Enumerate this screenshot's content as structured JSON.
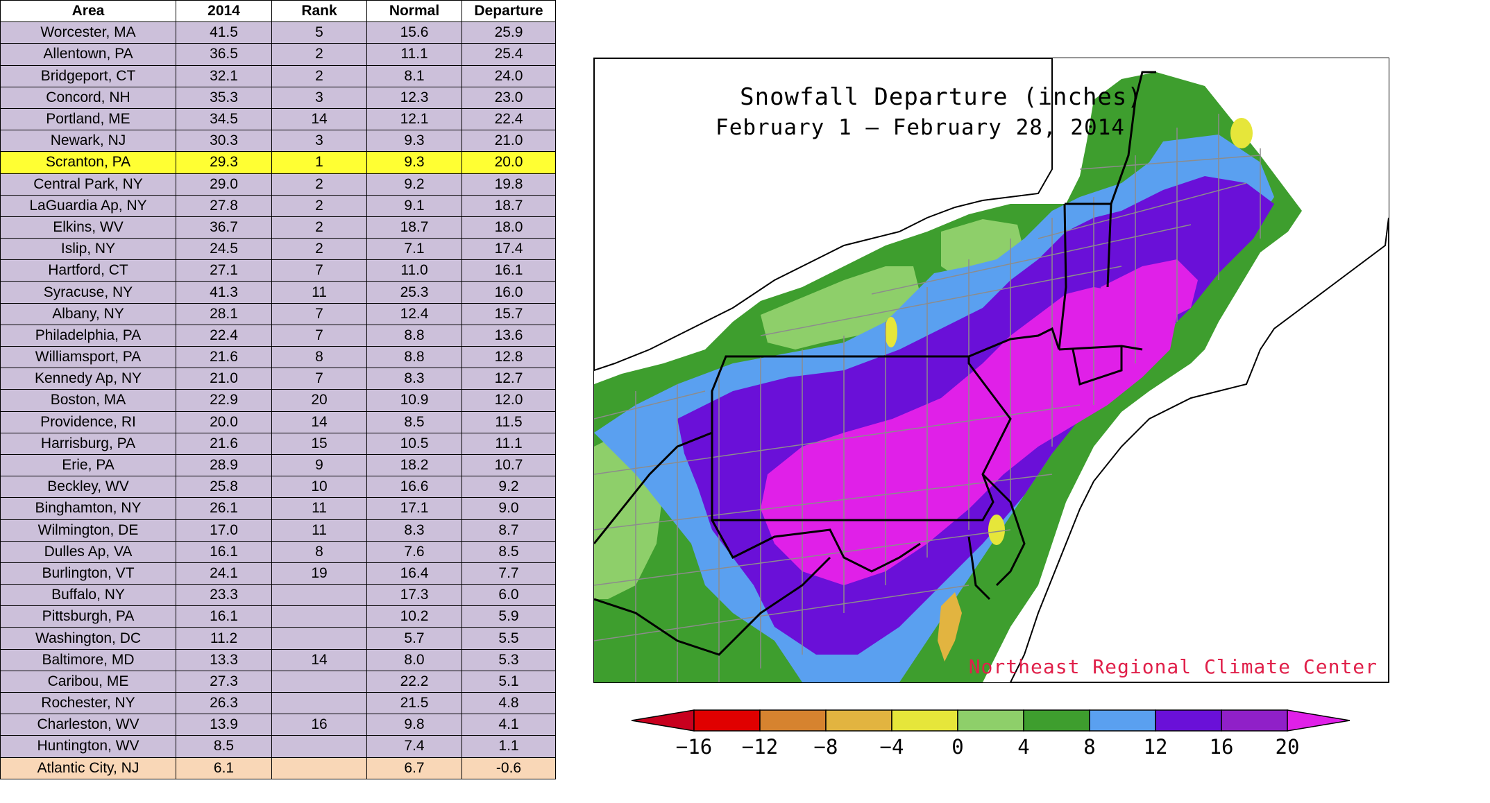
{
  "table": {
    "headers": [
      "Area",
      "2014",
      "Rank",
      "Normal",
      "Departure"
    ],
    "rows": [
      {
        "area": "Worcester, MA",
        "y2014": "41.5",
        "rank": "5",
        "normal": "15.6",
        "departure": "25.9"
      },
      {
        "area": "Allentown, PA",
        "y2014": "36.5",
        "rank": "2",
        "normal": "11.1",
        "departure": "25.4"
      },
      {
        "area": "Bridgeport, CT",
        "y2014": "32.1",
        "rank": "2",
        "normal": "8.1",
        "departure": "24.0"
      },
      {
        "area": "Concord, NH",
        "y2014": "35.3",
        "rank": "3",
        "normal": "12.3",
        "departure": "23.0"
      },
      {
        "area": "Portland, ME",
        "y2014": "34.5",
        "rank": "14",
        "normal": "12.1",
        "departure": "22.4"
      },
      {
        "area": "Newark, NJ",
        "y2014": "30.3",
        "rank": "3",
        "normal": "9.3",
        "departure": "21.0"
      },
      {
        "area": "Scranton, PA",
        "y2014": "29.3",
        "rank": "1",
        "normal": "9.3",
        "departure": "20.0",
        "highlight": true
      },
      {
        "area": "Central Park, NY",
        "y2014": "29.0",
        "rank": "2",
        "normal": "9.2",
        "departure": "19.8"
      },
      {
        "area": "LaGuardia Ap, NY",
        "y2014": "27.8",
        "rank": "2",
        "normal": "9.1",
        "departure": "18.7"
      },
      {
        "area": "Elkins, WV",
        "y2014": "36.7",
        "rank": "2",
        "normal": "18.7",
        "departure": "18.0"
      },
      {
        "area": "Islip, NY",
        "y2014": "24.5",
        "rank": "2",
        "normal": "7.1",
        "departure": "17.4"
      },
      {
        "area": "Hartford, CT",
        "y2014": "27.1",
        "rank": "7",
        "normal": "11.0",
        "departure": "16.1"
      },
      {
        "area": "Syracuse, NY",
        "y2014": "41.3",
        "rank": "11",
        "normal": "25.3",
        "departure": "16.0"
      },
      {
        "area": "Albany, NY",
        "y2014": "28.1",
        "rank": "7",
        "normal": "12.4",
        "departure": "15.7"
      },
      {
        "area": "Philadelphia, PA",
        "y2014": "22.4",
        "rank": "7",
        "normal": "8.8",
        "departure": "13.6"
      },
      {
        "area": "Williamsport, PA",
        "y2014": "21.6",
        "rank": "8",
        "normal": "8.8",
        "departure": "12.8"
      },
      {
        "area": "Kennedy Ap, NY",
        "y2014": "21.0",
        "rank": "7",
        "normal": "8.3",
        "departure": "12.7"
      },
      {
        "area": "Boston, MA",
        "y2014": "22.9",
        "rank": "20",
        "normal": "10.9",
        "departure": "12.0"
      },
      {
        "area": "Providence, RI",
        "y2014": "20.0",
        "rank": "14",
        "normal": "8.5",
        "departure": "11.5"
      },
      {
        "area": "Harrisburg, PA",
        "y2014": "21.6",
        "rank": "15",
        "normal": "10.5",
        "departure": "11.1"
      },
      {
        "area": "Erie, PA",
        "y2014": "28.9",
        "rank": "9",
        "normal": "18.2",
        "departure": "10.7"
      },
      {
        "area": "Beckley, WV",
        "y2014": "25.8",
        "rank": "10",
        "normal": "16.6",
        "departure": "9.2"
      },
      {
        "area": "Binghamton, NY",
        "y2014": "26.1",
        "rank": "11",
        "normal": "17.1",
        "departure": "9.0"
      },
      {
        "area": "Wilmington, DE",
        "y2014": "17.0",
        "rank": "11",
        "normal": "8.3",
        "departure": "8.7"
      },
      {
        "area": "Dulles Ap, VA",
        "y2014": "16.1",
        "rank": "8",
        "normal": "7.6",
        "departure": "8.5"
      },
      {
        "area": "Burlington, VT",
        "y2014": "24.1",
        "rank": "19",
        "normal": "16.4",
        "departure": "7.7"
      },
      {
        "area": "Buffalo, NY",
        "y2014": "23.3",
        "rank": "",
        "normal": "17.3",
        "departure": "6.0"
      },
      {
        "area": "Pittsburgh, PA",
        "y2014": "16.1",
        "rank": "",
        "normal": "10.2",
        "departure": "5.9"
      },
      {
        "area": "Washington, DC",
        "y2014": "11.2",
        "rank": "",
        "normal": "5.7",
        "departure": "5.5"
      },
      {
        "area": "Baltimore, MD",
        "y2014": "13.3",
        "rank": "14",
        "normal": "8.0",
        "departure": "5.3"
      },
      {
        "area": "Caribou, ME",
        "y2014": "27.3",
        "rank": "",
        "normal": "22.2",
        "departure": "5.1"
      },
      {
        "area": "Rochester, NY",
        "y2014": "26.3",
        "rank": "",
        "normal": "21.5",
        "departure": "4.8"
      },
      {
        "area": "Charleston, WV",
        "y2014": "13.9",
        "rank": "16",
        "normal": "9.8",
        "departure": "4.1"
      },
      {
        "area": "Huntington, WV",
        "y2014": "8.5",
        "rank": "",
        "normal": "7.4",
        "departure": "1.1"
      },
      {
        "area": "Atlantic City, NJ",
        "y2014": "6.1",
        "rank": "",
        "normal": "6.7",
        "departure": "-0.6",
        "negative": true
      }
    ]
  },
  "map": {
    "title": "Snowfall Departure (inches)",
    "subtitle": "February 1 – February 28, 2014",
    "credit": "Northeast Regional Climate Center"
  },
  "legend": {
    "labels": [
      "−16",
      "−12",
      "−8",
      "−4",
      "0",
      "4",
      "8",
      "12",
      "16",
      "20"
    ],
    "colors": [
      "#c8001e",
      "#e00000",
      "#d6832f",
      "#e2b440",
      "#e6e63a",
      "#8ecf6a",
      "#3e9e2e",
      "#5aa0f0",
      "#6a10d8",
      "#9020c8",
      "#e020e8"
    ]
  }
}
